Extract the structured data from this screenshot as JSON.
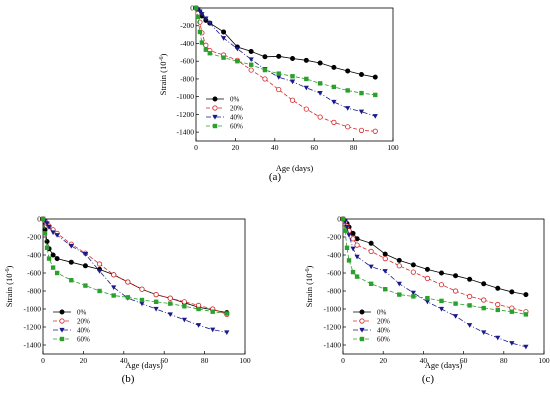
{
  "chart_data": [
    {
      "type": "line",
      "panel_label": "(a)",
      "xlabel": "Age (days)",
      "ylabel": "Strain (10",
      "ylabel_exp": "-6",
      "ylabel_close": ")",
      "xlim": [
        0,
        100
      ],
      "ylim": [
        -1500,
        0
      ],
      "xticks": [
        0,
        20,
        40,
        60,
        80,
        100
      ],
      "yticks": [
        0,
        -200,
        -400,
        -600,
        -800,
        -1000,
        -1200,
        -1400
      ],
      "grid": false,
      "legend_position": "bottom-left",
      "series": [
        {
          "name": "0%",
          "color": "#000000",
          "marker": "circle-filled",
          "dash": "solid",
          "x": [
            0,
            1,
            2,
            3,
            5,
            7,
            14,
            21,
            28,
            35,
            42,
            49,
            56,
            63,
            70,
            77,
            84,
            91
          ],
          "y": [
            0,
            -20,
            -50,
            -90,
            -140,
            -170,
            -270,
            -440,
            -490,
            -550,
            -545,
            -570,
            -590,
            -620,
            -670,
            -710,
            -750,
            -780
          ]
        },
        {
          "name": "20%",
          "color": "#d62728",
          "marker": "circle-open",
          "dash": "dash",
          "x": [
            0,
            1,
            2,
            3,
            5,
            7,
            14,
            21,
            28,
            35,
            42,
            49,
            56,
            63,
            70,
            77,
            84,
            91
          ],
          "y": [
            0,
            -60,
            -160,
            -280,
            -420,
            -480,
            -530,
            -590,
            -700,
            -800,
            -920,
            -1040,
            -1140,
            -1230,
            -1290,
            -1340,
            -1380,
            -1390
          ]
        },
        {
          "name": "40%",
          "color": "#1a1a8c",
          "marker": "triangle-down",
          "dash": "dashdot",
          "x": [
            0,
            1,
            2,
            3,
            5,
            7,
            14,
            21,
            28,
            35,
            42,
            49,
            56,
            63,
            70,
            77,
            84,
            91
          ],
          "y": [
            0,
            -15,
            -40,
            -70,
            -120,
            -170,
            -340,
            -460,
            -580,
            -690,
            -780,
            -830,
            -900,
            -960,
            -1060,
            -1130,
            -1170,
            -1220
          ]
        },
        {
          "name": "60%",
          "color": "#2ca02c",
          "marker": "square",
          "dash": "dash",
          "x": [
            0,
            1,
            2,
            3,
            5,
            7,
            14,
            21,
            28,
            35,
            42,
            49,
            56,
            63,
            70,
            77,
            84,
            91
          ],
          "y": [
            0,
            -100,
            -270,
            -390,
            -470,
            -510,
            -560,
            -600,
            -640,
            -700,
            -740,
            -770,
            -800,
            -850,
            -890,
            -930,
            -960,
            -980
          ]
        }
      ]
    },
    {
      "type": "line",
      "panel_label": "(b)",
      "xlabel": "Age (days)",
      "ylabel": "Strain (10",
      "ylabel_exp": "-6",
      "ylabel_close": ")",
      "xlim": [
        0,
        100
      ],
      "ylim": [
        -1500,
        0
      ],
      "xticks": [
        0,
        20,
        40,
        60,
        80,
        100
      ],
      "yticks": [
        0,
        -200,
        -400,
        -600,
        -800,
        -1000,
        -1200,
        -1400
      ],
      "grid": false,
      "legend_position": "bottom-left",
      "series": [
        {
          "name": "0%",
          "color": "#000000",
          "marker": "circle-filled",
          "dash": "solid",
          "x": [
            0,
            1,
            2,
            3,
            5,
            7,
            14,
            21,
            28,
            35,
            42,
            49,
            56,
            63,
            70,
            77,
            84,
            91
          ],
          "y": [
            0,
            -120,
            -250,
            -330,
            -400,
            -440,
            -480,
            -520,
            -560,
            -620,
            -700,
            -780,
            -840,
            -880,
            -930,
            -980,
            -1010,
            -1040
          ]
        },
        {
          "name": "20%",
          "color": "#d62728",
          "marker": "circle-open",
          "dash": "dash",
          "x": [
            0,
            1,
            2,
            3,
            5,
            7,
            14,
            21,
            28,
            35,
            42,
            49,
            56,
            63,
            70,
            77,
            84,
            91
          ],
          "y": [
            0,
            -20,
            -50,
            -80,
            -120,
            -160,
            -280,
            -380,
            -500,
            -620,
            -700,
            -780,
            -840,
            -880,
            -920,
            -960,
            -1000,
            -1060
          ]
        },
        {
          "name": "40%",
          "color": "#1a1a8c",
          "marker": "triangle-down",
          "dash": "dashdot",
          "x": [
            0,
            1,
            2,
            3,
            5,
            7,
            14,
            21,
            28,
            35,
            42,
            49,
            56,
            63,
            70,
            77,
            84,
            91
          ],
          "y": [
            0,
            -20,
            -50,
            -90,
            -150,
            -180,
            -300,
            -390,
            -580,
            -760,
            -880,
            -940,
            -1000,
            -1060,
            -1120,
            -1180,
            -1230,
            -1260
          ]
        },
        {
          "name": "60%",
          "color": "#2ca02c",
          "marker": "square",
          "dash": "dash",
          "x": [
            0,
            1,
            2,
            3,
            5,
            7,
            14,
            21,
            28,
            35,
            42,
            49,
            56,
            63,
            70,
            77,
            84,
            91
          ],
          "y": [
            0,
            -160,
            -320,
            -440,
            -540,
            -600,
            -680,
            -740,
            -800,
            -850,
            -870,
            -900,
            -920,
            -940,
            -970,
            -1000,
            -1030,
            -1050
          ]
        }
      ]
    },
    {
      "type": "line",
      "panel_label": "(c)",
      "xlabel": "Age (days)",
      "ylabel": "Strain (10",
      "ylabel_exp": "-6",
      "ylabel_close": ")",
      "xlim": [
        0,
        100
      ],
      "ylim": [
        -1500,
        0
      ],
      "xticks": [
        0,
        20,
        40,
        60,
        80,
        100
      ],
      "yticks": [
        0,
        -200,
        -400,
        -600,
        -800,
        -1000,
        -1200,
        -1400
      ],
      "grid": false,
      "legend_position": "bottom-left",
      "series": [
        {
          "name": "0%",
          "color": "#000000",
          "marker": "circle-filled",
          "dash": "solid",
          "x": [
            0,
            1,
            2,
            3,
            5,
            7,
            14,
            21,
            28,
            35,
            42,
            49,
            56,
            63,
            70,
            77,
            84,
            91
          ],
          "y": [
            0,
            -20,
            -50,
            -90,
            -160,
            -220,
            -270,
            -390,
            -460,
            -510,
            -560,
            -600,
            -630,
            -670,
            -720,
            -770,
            -810,
            -840
          ]
        },
        {
          "name": "20%",
          "color": "#d62728",
          "marker": "circle-open",
          "dash": "dash",
          "x": [
            0,
            1,
            2,
            3,
            5,
            7,
            14,
            21,
            28,
            35,
            42,
            49,
            56,
            63,
            70,
            77,
            84,
            91
          ],
          "y": [
            0,
            -30,
            -80,
            -130,
            -220,
            -290,
            -360,
            -440,
            -520,
            -590,
            -660,
            -730,
            -800,
            -860,
            -900,
            -950,
            -990,
            -1030
          ]
        },
        {
          "name": "40%",
          "color": "#1a1a8c",
          "marker": "triangle-down",
          "dash": "dashdot",
          "x": [
            0,
            1,
            2,
            3,
            5,
            7,
            14,
            21,
            28,
            35,
            42,
            49,
            56,
            63,
            70,
            77,
            84,
            91
          ],
          "y": [
            0,
            -30,
            -90,
            -180,
            -330,
            -420,
            -530,
            -580,
            -720,
            -820,
            -920,
            -1000,
            -1080,
            -1180,
            -1260,
            -1320,
            -1380,
            -1420
          ]
        },
        {
          "name": "60%",
          "color": "#2ca02c",
          "marker": "square",
          "dash": "dash",
          "x": [
            0,
            1,
            2,
            3,
            5,
            7,
            14,
            21,
            28,
            35,
            42,
            49,
            56,
            63,
            70,
            77,
            84,
            91
          ],
          "y": [
            0,
            -130,
            -320,
            -460,
            -590,
            -640,
            -720,
            -780,
            -840,
            -860,
            -880,
            -910,
            -940,
            -960,
            -990,
            -1010,
            -1030,
            -1060
          ]
        }
      ]
    }
  ]
}
